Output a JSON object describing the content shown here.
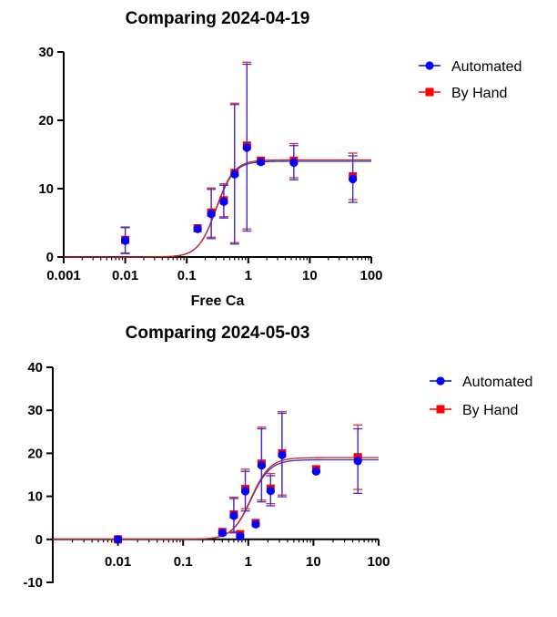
{
  "chart_data": [
    {
      "type": "scatter",
      "title": "Comparing 2024-04-19",
      "xlabel": "Free Ca",
      "ylabel": "",
      "xscale": "log",
      "xlim": [
        0.001,
        100
      ],
      "ylim": [
        0,
        30
      ],
      "xticks": [
        "0.001",
        "0.01",
        "0.1",
        "1",
        "10",
        "100"
      ],
      "yticks": [
        "0",
        "10",
        "20",
        "30"
      ],
      "legend_position": "top-right",
      "series": [
        {
          "name": "Automated",
          "marker": "circle",
          "color": "#0000ff",
          "fit_color": "#3333cc",
          "fit": {
            "bottom": 0,
            "top": 14.0,
            "ec50": 0.3,
            "hill": 3.0
          },
          "points": [
            {
              "x": 0.01,
              "y": 2.4,
              "err": 1.9
            },
            {
              "x": 0.15,
              "y": 4.1,
              "err": 0
            },
            {
              "x": 0.25,
              "y": 6.3,
              "err": 3.6
            },
            {
              "x": 0.4,
              "y": 8.1,
              "err": 2.4
            },
            {
              "x": 0.6,
              "y": 12.1,
              "err": 10.2
            },
            {
              "x": 0.95,
              "y": 16.0,
              "err": 12.2
            },
            {
              "x": 1.6,
              "y": 13.9,
              "err": 0
            },
            {
              "x": 5.5,
              "y": 13.8,
              "err": 2.5
            },
            {
              "x": 50,
              "y": 11.4,
              "err": 3.4
            }
          ]
        },
        {
          "name": "By Hand",
          "marker": "square",
          "color": "#ff0000",
          "fit_color": "#cc2222",
          "fit": {
            "bottom": 0,
            "top": 14.2,
            "ec50": 0.3,
            "hill": 3.0
          },
          "points": [
            {
              "x": 0.01,
              "y": 2.5,
              "err": 1.9
            },
            {
              "x": 0.15,
              "y": 4.2,
              "err": 0
            },
            {
              "x": 0.25,
              "y": 6.5,
              "err": 3.6
            },
            {
              "x": 0.4,
              "y": 8.3,
              "err": 2.4
            },
            {
              "x": 0.6,
              "y": 12.3,
              "err": 10.2
            },
            {
              "x": 0.95,
              "y": 16.3,
              "err": 12.2
            },
            {
              "x": 1.6,
              "y": 14.1,
              "err": 0
            },
            {
              "x": 5.5,
              "y": 14.1,
              "err": 2.5
            },
            {
              "x": 50,
              "y": 11.8,
              "err": 3.4
            }
          ]
        }
      ]
    },
    {
      "type": "scatter",
      "title": "Comparing 2024-05-03",
      "xlabel": "",
      "ylabel": "",
      "xscale": "log",
      "xlim": [
        0.001,
        100
      ],
      "ylim": [
        -10,
        40
      ],
      "xticks": [
        "0.01",
        "0.1",
        "1",
        "10",
        "100"
      ],
      "yticks": [
        "-10",
        "0",
        "10",
        "20",
        "30",
        "40"
      ],
      "legend_position": "top-right",
      "series": [
        {
          "name": "Automated",
          "marker": "circle",
          "color": "#0000ff",
          "fit_color": "#3333cc",
          "fit": {
            "bottom": 0,
            "top": 18.5,
            "ec50": 1.1,
            "hill": 3.0
          },
          "points": [
            {
              "x": 0.01,
              "y": 0,
              "err": 0
            },
            {
              "x": 0.4,
              "y": 1.5,
              "err": 0
            },
            {
              "x": 0.6,
              "y": 5.5,
              "err": 4.0
            },
            {
              "x": 0.75,
              "y": 0.7,
              "err": 0
            },
            {
              "x": 0.9,
              "y": 11.2,
              "err": 4.6
            },
            {
              "x": 1.3,
              "y": 3.5,
              "err": 0
            },
            {
              "x": 1.6,
              "y": 17.2,
              "err": 8.5
            },
            {
              "x": 2.2,
              "y": 11.3,
              "err": 3.5
            },
            {
              "x": 3.3,
              "y": 19.6,
              "err": 9.7
            },
            {
              "x": 11,
              "y": 15.8,
              "err": 0
            },
            {
              "x": 48,
              "y": 18.2,
              "err": 7.5
            }
          ]
        },
        {
          "name": "By Hand",
          "marker": "square",
          "color": "#ff0000",
          "fit_color": "#cc2222",
          "fit": {
            "bottom": 0,
            "top": 19.0,
            "ec50": 1.1,
            "hill": 3.0
          },
          "points": [
            {
              "x": 0.01,
              "y": 0,
              "err": 0
            },
            {
              "x": 0.4,
              "y": 1.7,
              "err": 0
            },
            {
              "x": 0.6,
              "y": 5.8,
              "err": 4.0
            },
            {
              "x": 0.75,
              "y": 1.2,
              "err": 0
            },
            {
              "x": 0.9,
              "y": 11.7,
              "err": 4.6
            },
            {
              "x": 1.3,
              "y": 3.8,
              "err": 0
            },
            {
              "x": 1.6,
              "y": 17.6,
              "err": 8.5
            },
            {
              "x": 2.2,
              "y": 11.8,
              "err": 3.5
            },
            {
              "x": 3.3,
              "y": 20.0,
              "err": 9.7
            },
            {
              "x": 11,
              "y": 16.3,
              "err": 0
            },
            {
              "x": 48,
              "y": 19.1,
              "err": 7.5
            }
          ]
        }
      ]
    }
  ]
}
